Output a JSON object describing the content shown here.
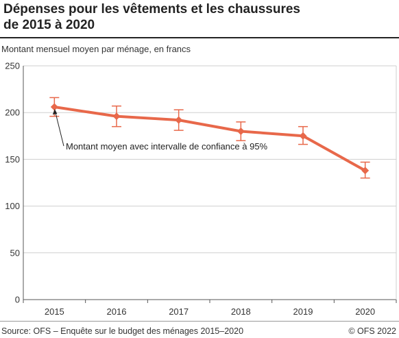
{
  "title_line1": "Dépenses pour les vêtements et les chaussures",
  "title_line2": "de 2015 à 2020",
  "subtitle": "Montant mensuel moyen par ménage, en francs",
  "source": "Source: OFS – Enquête sur le budget des ménages 2015–2020",
  "copyright": "© OFS 2022",
  "chart_data": {
    "type": "line",
    "x": [
      "2015",
      "2016",
      "2017",
      "2018",
      "2019",
      "2020"
    ],
    "series": [
      {
        "values": [
          206,
          196,
          192,
          180,
          175,
          138
        ],
        "ci_low": [
          196,
          185,
          181,
          170,
          166,
          130
        ],
        "ci_high": [
          216,
          207,
          203,
          190,
          185,
          147
        ],
        "color": "#e8684a"
      }
    ],
    "yticks": [
      0,
      50,
      100,
      150,
      200,
      250
    ],
    "ylim": [
      0,
      250
    ],
    "grid": true,
    "annotation": "Montant moyen avec intervalle de confiance à 95%"
  }
}
